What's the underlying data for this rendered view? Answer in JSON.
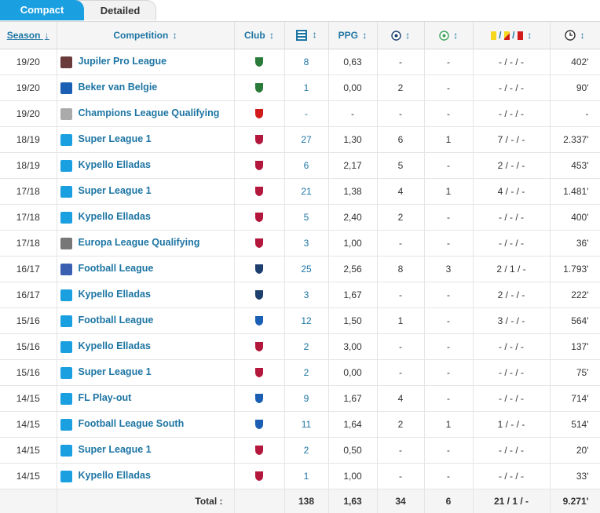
{
  "tabs": {
    "compact": "Compact",
    "detailed": "Detailed"
  },
  "headers": {
    "season": "Season",
    "season_sort": "↓",
    "competition": "Competition",
    "club": "Club",
    "ppg": "PPG",
    "sort": "↕",
    "cards_sep": "/"
  },
  "icons": {
    "appearances": "lineup-icon",
    "goals": "football-icon",
    "assists": "assist-football-icon",
    "cards": "yellow-red-cards-icon",
    "minutes": "clock-icon"
  },
  "colors": {
    "accent": "#1a9fe0",
    "link": "#1d75a3",
    "yellow": "#f5d71e",
    "red": "#d11a1a"
  },
  "rows": [
    {
      "season": "19/20",
      "competition": "Jupiler Pro League",
      "apps": "8",
      "ppg": "0,63",
      "goals": "-",
      "assists": "-",
      "cards": "- / - / -",
      "minutes": "402'"
    },
    {
      "season": "19/20",
      "competition": "Beker van Belgie",
      "apps": "1",
      "ppg": "0,00",
      "goals": "2",
      "assists": "-",
      "cards": "- / - / -",
      "minutes": "90'"
    },
    {
      "season": "19/20",
      "competition": "Champions League Qualifying",
      "apps": "-",
      "ppg": "-",
      "goals": "-",
      "assists": "-",
      "cards": "- / - / -",
      "minutes": "-"
    },
    {
      "season": "18/19",
      "competition": "Super League 1",
      "apps": "27",
      "ppg": "1,30",
      "goals": "6",
      "assists": "1",
      "cards": "7 / - / -",
      "minutes": "2.337'"
    },
    {
      "season": "18/19",
      "competition": "Kypello Elladas",
      "apps": "6",
      "ppg": "2,17",
      "goals": "5",
      "assists": "-",
      "cards": "2 / - / -",
      "minutes": "453'"
    },
    {
      "season": "17/18",
      "competition": "Super League 1",
      "apps": "21",
      "ppg": "1,38",
      "goals": "4",
      "assists": "1",
      "cards": "4 / - / -",
      "minutes": "1.481'"
    },
    {
      "season": "17/18",
      "competition": "Kypello Elladas",
      "apps": "5",
      "ppg": "2,40",
      "goals": "2",
      "assists": "-",
      "cards": "- / - / -",
      "minutes": "400'"
    },
    {
      "season": "17/18",
      "competition": "Europa League Qualifying",
      "apps": "3",
      "ppg": "1,00",
      "goals": "-",
      "assists": "-",
      "cards": "- / - / -",
      "minutes": "36'"
    },
    {
      "season": "16/17",
      "competition": "Football League",
      "apps": "25",
      "ppg": "2,56",
      "goals": "8",
      "assists": "3",
      "cards": "2 / 1 / -",
      "minutes": "1.793'"
    },
    {
      "season": "16/17",
      "competition": "Kypello Elladas",
      "apps": "3",
      "ppg": "1,67",
      "goals": "-",
      "assists": "-",
      "cards": "2 / - / -",
      "minutes": "222'"
    },
    {
      "season": "15/16",
      "competition": "Football League",
      "apps": "12",
      "ppg": "1,50",
      "goals": "1",
      "assists": "-",
      "cards": "3 / - / -",
      "minutes": "564'"
    },
    {
      "season": "15/16",
      "competition": "Kypello Elladas",
      "apps": "2",
      "ppg": "3,00",
      "goals": "-",
      "assists": "-",
      "cards": "- / - / -",
      "minutes": "137'"
    },
    {
      "season": "15/16",
      "competition": "Super League 1",
      "apps": "2",
      "ppg": "0,00",
      "goals": "-",
      "assists": "-",
      "cards": "- / - / -",
      "minutes": "75'"
    },
    {
      "season": "14/15",
      "competition": "FL Play-out",
      "apps": "9",
      "ppg": "1,67",
      "goals": "4",
      "assists": "-",
      "cards": "- / - / -",
      "minutes": "714'"
    },
    {
      "season": "14/15",
      "competition": "Football League South",
      "apps": "11",
      "ppg": "1,64",
      "goals": "2",
      "assists": "1",
      "cards": "1 / - / -",
      "minutes": "514'"
    },
    {
      "season": "14/15",
      "competition": "Super League 1",
      "apps": "2",
      "ppg": "0,50",
      "goals": "-",
      "assists": "-",
      "cards": "- / - / -",
      "minutes": "20'"
    },
    {
      "season": "14/15",
      "competition": "Kypello Elladas",
      "apps": "1",
      "ppg": "1,00",
      "goals": "-",
      "assists": "-",
      "cards": "- / - / -",
      "minutes": "33'"
    }
  ],
  "total": {
    "label": "Total :",
    "apps": "138",
    "ppg": "1,63",
    "goals": "34",
    "assists": "6",
    "cards": "21 / 1 / -",
    "minutes": "9.271'"
  }
}
